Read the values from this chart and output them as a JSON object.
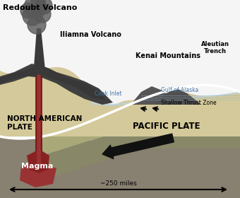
{
  "bg_color": "#f5f5f5",
  "water_color": "#b8d4e8",
  "land_color": "#d4c99a",
  "na_plate_color": "#d4c99a",
  "pacific_plate_top_color": "#a8a878",
  "pacific_plate_bot_color": "#888868",
  "mantle_color": "#989878",
  "deep_color": "#888070",
  "volcano_color": "#484848",
  "smoke_color": "#585858",
  "magma_color": "#993333",
  "magma_blob_color": "#882222",
  "arrow_color": "#111111",
  "white": "#ffffff",
  "water_lines_color": "#8ab0cc",
  "labels": {
    "redoubt": "Redoubt Volcano",
    "iliamna": "Iliamna Volcano",
    "kenai": "Kenai Mountains",
    "aleutian": "Aleutian\nTrench",
    "cook_inlet": "Cook Inlet",
    "gulf_alaska": "Gulf of Alaska",
    "shallow_thrust": "Shallow Thrust Zone",
    "na_plate": "NORTH AMERICAN\nPLATE",
    "pacific_plate": "PACIFIC PLATE",
    "magma": "Magma",
    "distance": "~250 miles"
  }
}
